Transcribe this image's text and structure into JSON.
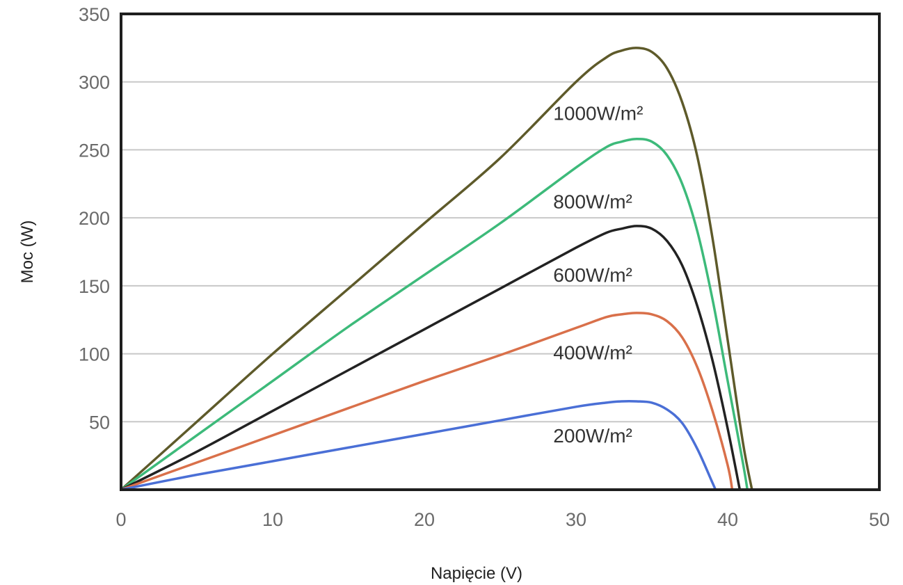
{
  "chart_data": {
    "type": "line",
    "title": "",
    "xlabel": "Napięcie (V)",
    "ylabel": "Moc (W)",
    "xlim": [
      0,
      50
    ],
    "ylim": [
      0,
      350
    ],
    "xticks": [
      0,
      10,
      20,
      30,
      40,
      50
    ],
    "yticks": [
      50,
      100,
      150,
      200,
      250,
      300,
      350
    ],
    "grid": "horizontal",
    "legend": "none",
    "series": [
      {
        "name": "1000W/m²",
        "color": "#5e5a2a",
        "x": [
          0,
          5,
          10,
          15,
          20,
          25,
          30,
          32,
          33,
          34,
          35,
          36,
          37,
          38,
          39,
          40,
          41,
          41.6
        ],
        "y": [
          0,
          50,
          100,
          148,
          196,
          244,
          300,
          318,
          323,
          325,
          322,
          310,
          285,
          245,
          185,
          110,
          35,
          0
        ]
      },
      {
        "name": "800W/m²",
        "color": "#3dba7a",
        "x": [
          0,
          5,
          10,
          15,
          20,
          25,
          30,
          32,
          33,
          34,
          35,
          36,
          37,
          38,
          39,
          40,
          41,
          41.3
        ],
        "y": [
          0,
          40,
          80,
          120,
          158,
          196,
          237,
          252,
          256,
          258,
          256,
          246,
          225,
          190,
          140,
          80,
          20,
          0
        ]
      },
      {
        "name": "600W/m²",
        "color": "#222222",
        "x": [
          0,
          5,
          10,
          15,
          20,
          25,
          30,
          32,
          33,
          34,
          35,
          36,
          37,
          38,
          39,
          40,
          40.8
        ],
        "y": [
          0,
          28,
          58,
          88,
          118,
          148,
          178,
          189,
          192,
          194,
          192,
          183,
          165,
          135,
          95,
          45,
          0
        ]
      },
      {
        "name": "400W/m²",
        "color": "#d9704a",
        "x": [
          0,
          5,
          10,
          15,
          20,
          25,
          30,
          32,
          33,
          34,
          35,
          36,
          37,
          38,
          39,
          40,
          40.3
        ],
        "y": [
          0,
          20,
          40,
          60,
          80,
          99,
          119,
          127,
          129,
          130,
          129,
          124,
          112,
          90,
          58,
          18,
          0
        ]
      },
      {
        "name": "200W/m²",
        "color": "#4a6fd6",
        "x": [
          0,
          5,
          10,
          15,
          20,
          25,
          30,
          32,
          33,
          34,
          35,
          36,
          37,
          38,
          39,
          39.2
        ],
        "y": [
          0,
          11,
          21,
          31,
          41,
          51,
          61,
          64,
          65,
          65,
          64,
          59,
          49,
          30,
          5,
          0
        ]
      }
    ],
    "annotations": [
      {
        "text": "1000W/m²",
        "x": 28.5,
        "y": 277
      },
      {
        "text": "800W/m²",
        "x": 28.5,
        "y": 212
      },
      {
        "text": "600W/m²",
        "x": 28.5,
        "y": 158
      },
      {
        "text": "400W/m²",
        "x": 28.5,
        "y": 101
      },
      {
        "text": "200W/m²",
        "x": 28.5,
        "y": 40
      }
    ]
  }
}
